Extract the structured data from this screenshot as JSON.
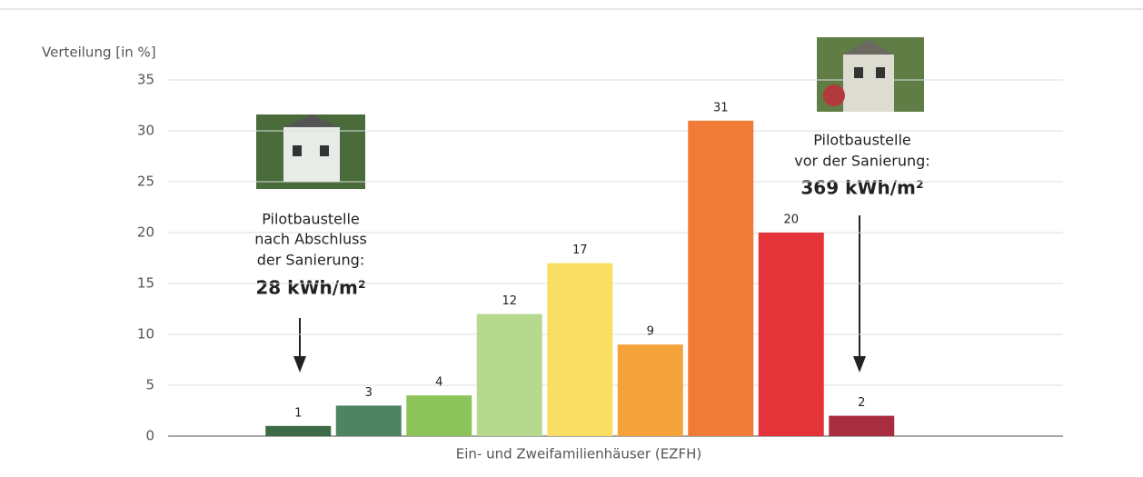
{
  "chart_data": {
    "type": "bar",
    "y_label": "Verteilung [in %]",
    "x_label": "Ein- und Zweifamilienhäuser (EZFH)",
    "categories": [
      null,
      null,
      null,
      null,
      null,
      null,
      null,
      null,
      null
    ],
    "values": [
      1,
      3,
      4,
      12,
      17,
      9,
      31,
      20,
      2
    ],
    "colors": [
      "#3e6b47",
      "#4f8462",
      "#8cc45a",
      "#b6d98f",
      "#f8df64",
      "#f6a23b",
      "#ef7b37",
      "#e5333a",
      "#a82d3e"
    ],
    "ylim": [
      0,
      35
    ],
    "yticks": [
      0,
      5,
      10,
      15,
      20,
      25,
      30,
      35
    ],
    "grid": true,
    "annotations": [
      {
        "lines": [
          "Pilotbaustelle",
          "nach Abschluss",
          "der Sanierung:"
        ],
        "highlight": "28 kWh/m²"
      },
      {
        "lines": [
          "Pilotbaustelle",
          "vor der Sanierung:"
        ],
        "highlight": "369 kWh/m²"
      }
    ]
  }
}
